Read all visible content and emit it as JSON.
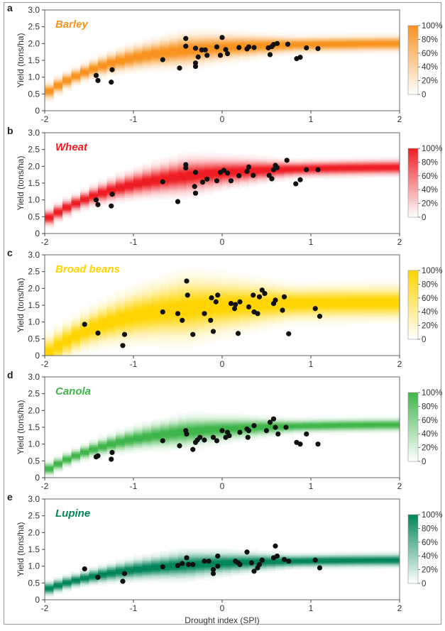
{
  "figure": {
    "xlabel": "Drought index (SPI)",
    "ylabel": "Yield (tons/ha)",
    "x_ticks": [
      "-2",
      "-1",
      "0",
      "1",
      "2"
    ],
    "y_ticks": [
      "0",
      "0.5",
      "1.0",
      "1.5",
      "2.0",
      "2.5",
      "3.0"
    ],
    "colorbar_ticks": [
      "0",
      "20%",
      "40%",
      "60%",
      "80%",
      "100%"
    ]
  },
  "chart_data": [
    {
      "type": "scatter",
      "panel": "a",
      "title": "Barley",
      "color": "#f7931e",
      "title_color": "#f7931e",
      "xlabel": "",
      "ylabel": "Yield (tons/ha)",
      "xlim": [
        -2,
        2
      ],
      "ylim": [
        0,
        3
      ],
      "band": {
        "min": 0.5,
        "max": 2.02,
        "k": 1.25,
        "x0": -2,
        "spread": 0.12,
        "spread_growth": 0.1
      },
      "points": [
        [
          -1.42,
          1.05
        ],
        [
          -1.4,
          0.9
        ],
        [
          -1.24,
          1.22
        ],
        [
          -1.25,
          0.85
        ],
        [
          -0.67,
          1.52
        ],
        [
          -0.48,
          1.27
        ],
        [
          -0.41,
          2.15
        ],
        [
          -0.41,
          1.92
        ],
        [
          -0.3,
          1.86
        ],
        [
          -0.3,
          1.42
        ],
        [
          -0.3,
          1.32
        ],
        [
          -0.27,
          1.6
        ],
        [
          -0.23,
          1.81
        ],
        [
          -0.19,
          1.81
        ],
        [
          -0.17,
          1.65
        ],
        [
          -0.06,
          1.9
        ],
        [
          -0.02,
          1.65
        ],
        [
          0.0,
          2.18
        ],
        [
          0.04,
          1.82
        ],
        [
          0.06,
          1.7
        ],
        [
          0.19,
          1.88
        ],
        [
          0.28,
          1.84
        ],
        [
          0.3,
          1.9
        ],
        [
          0.36,
          1.88
        ],
        [
          0.52,
          1.87
        ],
        [
          0.54,
          1.67
        ],
        [
          0.56,
          1.91
        ],
        [
          0.58,
          1.97
        ],
        [
          0.62,
          2.0
        ],
        [
          0.74,
          1.98
        ],
        [
          0.84,
          1.55
        ],
        [
          0.88,
          1.59
        ],
        [
          0.95,
          1.87
        ],
        [
          1.08,
          1.85
        ]
      ]
    },
    {
      "type": "scatter",
      "panel": "b",
      "title": "Wheat",
      "color": "#ee1d23",
      "title_color": "#ee1d23",
      "xlabel": "",
      "ylabel": "Yield (tons/ha)",
      "xlim": [
        -2,
        2
      ],
      "ylim": [
        0,
        3
      ],
      "band": {
        "min": 0.4,
        "max": 2.0,
        "k": 1.1,
        "x0": -2,
        "spread": 0.12,
        "spread_growth": 0.12
      },
      "points": [
        [
          -1.42,
          1.0
        ],
        [
          -1.4,
          0.86
        ],
        [
          -1.24,
          1.17
        ],
        [
          -1.25,
          0.82
        ],
        [
          -0.67,
          1.54
        ],
        [
          -0.5,
          0.95
        ],
        [
          -0.41,
          2.05
        ],
        [
          -0.41,
          1.95
        ],
        [
          -0.3,
          1.82
        ],
        [
          -0.31,
          1.4
        ],
        [
          -0.3,
          1.2
        ],
        [
          -0.22,
          1.53
        ],
        [
          -0.17,
          1.62
        ],
        [
          -0.06,
          1.57
        ],
        [
          -0.02,
          1.82
        ],
        [
          0.02,
          1.88
        ],
        [
          0.06,
          1.8
        ],
        [
          0.1,
          1.57
        ],
        [
          0.19,
          1.72
        ],
        [
          0.28,
          1.85
        ],
        [
          0.3,
          1.98
        ],
        [
          0.35,
          1.73
        ],
        [
          0.53,
          1.73
        ],
        [
          0.56,
          1.63
        ],
        [
          0.58,
          1.9
        ],
        [
          0.6,
          2.03
        ],
        [
          0.62,
          1.96
        ],
        [
          0.73,
          2.18
        ],
        [
          0.83,
          1.48
        ],
        [
          0.88,
          1.6
        ],
        [
          0.95,
          1.9
        ],
        [
          1.08,
          1.9
        ]
      ]
    },
    {
      "type": "scatter",
      "panel": "c",
      "title": "Broad beans",
      "color": "#ffd400",
      "title_color": "#ffd400",
      "xlabel": "",
      "ylabel": "Yield (tons/ha)",
      "xlim": [
        -2,
        2
      ],
      "ylim": [
        0,
        3
      ],
      "band": {
        "min": 0.0,
        "max": 1.6,
        "k": 1.35,
        "x0": -2,
        "spread": 0.25,
        "spread_growth": 0.18
      },
      "points": [
        [
          -1.55,
          0.93
        ],
        [
          -1.4,
          0.67
        ],
        [
          -1.1,
          0.63
        ],
        [
          -1.12,
          0.3
        ],
        [
          -0.67,
          1.3
        ],
        [
          -0.5,
          1.25
        ],
        [
          -0.45,
          1.05
        ],
        [
          -0.4,
          2.22
        ],
        [
          -0.39,
          1.8
        ],
        [
          -0.33,
          0.63
        ],
        [
          -0.2,
          1.25
        ],
        [
          -0.13,
          1.05
        ],
        [
          -0.12,
          1.72
        ],
        [
          -0.1,
          0.72
        ],
        [
          -0.07,
          1.6
        ],
        [
          -0.05,
          1.8
        ],
        [
          0.1,
          1.55
        ],
        [
          0.14,
          1.4
        ],
        [
          0.15,
          1.52
        ],
        [
          0.18,
          0.66
        ],
        [
          0.2,
          1.6
        ],
        [
          0.3,
          1.45
        ],
        [
          0.35,
          1.8
        ],
        [
          0.36,
          1.3
        ],
        [
          0.4,
          1.25
        ],
        [
          0.42,
          1.75
        ],
        [
          0.45,
          1.95
        ],
        [
          0.48,
          1.85
        ],
        [
          0.58,
          1.55
        ],
        [
          0.6,
          1.65
        ],
        [
          0.68,
          1.35
        ],
        [
          0.7,
          1.75
        ],
        [
          0.75,
          0.65
        ],
        [
          1.05,
          1.4
        ],
        [
          1.1,
          1.17
        ]
      ]
    },
    {
      "type": "scatter",
      "panel": "d",
      "title": "Canola",
      "color": "#3fb54a",
      "title_color": "#3fb54a",
      "xlabel": "",
      "ylabel": "Yield (tons/ha)",
      "xlim": [
        -2,
        2
      ],
      "ylim": [
        0,
        3
      ],
      "band": {
        "min": 0.2,
        "max": 1.6,
        "k": 1.15,
        "x0": -2,
        "spread": 0.1,
        "spread_growth": 0.1
      },
      "points": [
        [
          -1.42,
          0.62
        ],
        [
          -1.4,
          0.65
        ],
        [
          -1.24,
          0.75
        ],
        [
          -1.25,
          0.55
        ],
        [
          -0.67,
          1.1
        ],
        [
          -0.48,
          0.95
        ],
        [
          -0.41,
          1.4
        ],
        [
          -0.4,
          1.3
        ],
        [
          -0.33,
          0.84
        ],
        [
          -0.3,
          1.05
        ],
        [
          -0.28,
          1.12
        ],
        [
          -0.25,
          1.2
        ],
        [
          -0.2,
          1.12
        ],
        [
          -0.1,
          1.2
        ],
        [
          -0.06,
          1.1
        ],
        [
          0.0,
          1.4
        ],
        [
          0.04,
          1.2
        ],
        [
          0.06,
          1.35
        ],
        [
          0.08,
          1.25
        ],
        [
          0.2,
          1.35
        ],
        [
          0.28,
          1.45
        ],
        [
          0.29,
          1.2
        ],
        [
          0.3,
          1.4
        ],
        [
          0.36,
          1.55
        ],
        [
          0.5,
          1.4
        ],
        [
          0.54,
          1.65
        ],
        [
          0.58,
          1.75
        ],
        [
          0.6,
          1.5
        ],
        [
          0.63,
          1.3
        ],
        [
          0.72,
          1.5
        ],
        [
          0.84,
          1.05
        ],
        [
          0.88,
          1.0
        ],
        [
          0.95,
          1.3
        ],
        [
          1.08,
          1.0
        ]
      ]
    },
    {
      "type": "scatter",
      "panel": "e",
      "title": "Lupine",
      "color": "#00845a",
      "title_color": "#00845a",
      "xlabel": "Drought index (SPI)",
      "ylabel": "Yield (tons/ha)",
      "xlim": [
        -2,
        2
      ],
      "ylim": [
        0,
        3
      ],
      "band": {
        "min": 0.3,
        "max": 1.2,
        "k": 1.1,
        "x0": -2,
        "spread": 0.1,
        "spread_growth": 0.08
      },
      "points": [
        [
          -1.55,
          0.92
        ],
        [
          -1.4,
          0.67
        ],
        [
          -1.1,
          0.78
        ],
        [
          -1.12,
          0.55
        ],
        [
          -0.67,
          0.98
        ],
        [
          -0.5,
          1.02
        ],
        [
          -0.45,
          1.08
        ],
        [
          -0.4,
          1.25
        ],
        [
          -0.38,
          1.05
        ],
        [
          -0.33,
          1.05
        ],
        [
          -0.2,
          1.15
        ],
        [
          -0.15,
          1.15
        ],
        [
          -0.1,
          0.9
        ],
        [
          -0.1,
          0.78
        ],
        [
          -0.05,
          1.3
        ],
        [
          -0.05,
          1.0
        ],
        [
          0.15,
          1.15
        ],
        [
          0.18,
          1.1
        ],
        [
          0.2,
          1.05
        ],
        [
          0.28,
          1.42
        ],
        [
          0.33,
          1.1
        ],
        [
          0.36,
          0.85
        ],
        [
          0.4,
          0.95
        ],
        [
          0.42,
          1.05
        ],
        [
          0.45,
          1.18
        ],
        [
          0.58,
          1.25
        ],
        [
          0.6,
          1.6
        ],
        [
          0.62,
          1.3
        ],
        [
          0.7,
          1.2
        ],
        [
          0.75,
          1.15
        ],
        [
          1.05,
          1.18
        ],
        [
          1.1,
          0.95
        ]
      ]
    }
  ]
}
